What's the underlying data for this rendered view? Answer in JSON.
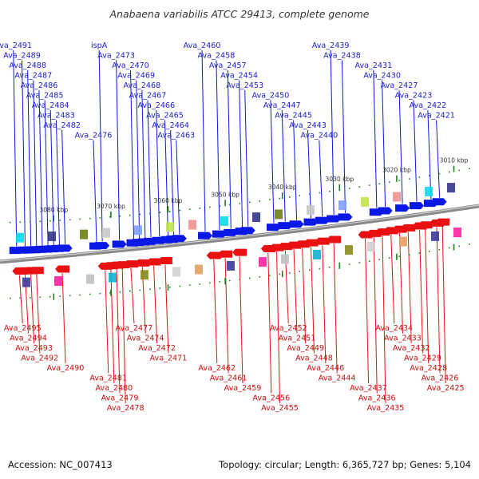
{
  "title": "Anabaena variabilis ATCC 29413, complete genome",
  "footer": {
    "accession": "Accession: NC_007413",
    "summary": "Topology: circular; Length: 6,365,727 bp; Genes: 5,104"
  },
  "colors": {
    "forward": "#0a18e6",
    "reverse": "#e81010",
    "forward_label": "#2020cc",
    "reverse_label": "#cc1010",
    "backbone": "#8a8a8a",
    "tick": "#208020"
  },
  "chart_data": {
    "type": "genome-map",
    "topology": "circular",
    "length_bp": 6365727,
    "gene_count": 5104,
    "visible_range_kbp": [
      3007,
      3088
    ],
    "scale_ticks": [
      {
        "kbp": 3010,
        "label": "3010 kbp"
      },
      {
        "kbp": 3020,
        "label": "3020 kbp"
      },
      {
        "kbp": 3030,
        "label": "3030 kbp"
      },
      {
        "kbp": 3040,
        "label": "3040 kbp"
      },
      {
        "kbp": 3050,
        "label": "3050 kbp"
      },
      {
        "kbp": 3060,
        "label": "3060 kbp"
      },
      {
        "kbp": 3070,
        "label": "3070 kbp"
      },
      {
        "kbp": 3080,
        "label": "3080 kbp"
      }
    ],
    "forward_genes": [
      {
        "label": "Ava_2421",
        "kbp": 3012.5
      },
      {
        "label": "Ava_2422",
        "kbp": 3014.0
      },
      {
        "label": "Ava_2423",
        "kbp": 3016.5
      },
      {
        "label": "Ava_2427",
        "kbp": 3019.0
      },
      {
        "label": "Ava_2430",
        "kbp": 3022.0
      },
      {
        "label": "Ava_2431",
        "kbp": 3023.5
      },
      {
        "label": "Ava_2438",
        "kbp": 3029.0
      },
      {
        "label": "Ava_2439",
        "kbp": 3031.0
      },
      {
        "label": "Ava_2440",
        "kbp": 3033.0
      },
      {
        "label": "Ava_2443",
        "kbp": 3035.0
      },
      {
        "label": "Ava_2445",
        "kbp": 3037.5
      },
      {
        "label": "Ava_2447",
        "kbp": 3039.5
      },
      {
        "label": "Ava_2450",
        "kbp": 3041.5
      },
      {
        "label": "Ava_2453",
        "kbp": 3046.0
      },
      {
        "label": "Ava_2454",
        "kbp": 3047.0
      },
      {
        "label": "Ava_2457",
        "kbp": 3049.0
      },
      {
        "label": "Ava_2458",
        "kbp": 3051.0
      },
      {
        "label": "Ava_2460",
        "kbp": 3053.5
      },
      {
        "label": "Ava_2463",
        "kbp": 3058.0
      },
      {
        "label": "Ava_2464",
        "kbp": 3059.0
      },
      {
        "label": "Ava_2465",
        "kbp": 3060.0
      },
      {
        "label": "Ava_2466",
        "kbp": 3061.5
      },
      {
        "label": "Ava_2467",
        "kbp": 3063.0
      },
      {
        "label": "Ava_2468",
        "kbp": 3064.0
      },
      {
        "label": "Ava_2469",
        "kbp": 3065.0
      },
      {
        "label": "Ava_2470",
        "kbp": 3066.0
      },
      {
        "label": "Ava_2473",
        "kbp": 3068.5
      },
      {
        "label": "Ava_2476",
        "kbp": 3072.5
      },
      {
        "label": "ispA",
        "kbp": 3071.5
      },
      {
        "label": "Ava_2482",
        "kbp": 3078.0
      },
      {
        "label": "Ava_2483",
        "kbp": 3079.0
      },
      {
        "label": "Ava_2484",
        "kbp": 3080.0
      },
      {
        "label": "Ava_2485",
        "kbp": 3081.0
      },
      {
        "label": "Ava_2486",
        "kbp": 3082.0
      },
      {
        "label": "Ava_2487",
        "kbp": 3083.0
      },
      {
        "label": "Ava_2488",
        "kbp": 3084.0
      },
      {
        "label": "Ava_2489",
        "kbp": 3085.0
      },
      {
        "label": "Ava_2491",
        "kbp": 3086.5
      }
    ],
    "reverse_genes": [
      {
        "label": "Ava_2425",
        "kbp": 3012.0
      },
      {
        "label": "Ava_2426",
        "kbp": 3013.0
      },
      {
        "label": "Ava_2428",
        "kbp": 3015.0
      },
      {
        "label": "Ava_2429",
        "kbp": 3016.0
      },
      {
        "label": "Ava_2432",
        "kbp": 3018.0
      },
      {
        "label": "Ava_2433",
        "kbp": 3019.5
      },
      {
        "label": "Ava_2434",
        "kbp": 3021.0
      },
      {
        "label": "Ava_2435",
        "kbp": 3022.5
      },
      {
        "label": "Ava_2436",
        "kbp": 3024.0
      },
      {
        "label": "Ava_2437",
        "kbp": 3025.5
      },
      {
        "label": "Ava_2444",
        "kbp": 3031.0
      },
      {
        "label": "Ava_2446",
        "kbp": 3033.0
      },
      {
        "label": "Ava_2448",
        "kbp": 3035.0
      },
      {
        "label": "Ava_2449",
        "kbp": 3036.5
      },
      {
        "label": "Ava_2451",
        "kbp": 3038.0
      },
      {
        "label": "Ava_2452",
        "kbp": 3039.5
      },
      {
        "label": "Ava_2455",
        "kbp": 3041.0
      },
      {
        "label": "Ava_2456",
        "kbp": 3042.5
      },
      {
        "label": "Ava_2459",
        "kbp": 3047.5
      },
      {
        "label": "Ava_2461",
        "kbp": 3050.0
      },
      {
        "label": "Ava_2462",
        "kbp": 3052.0
      },
      {
        "label": "Ava_2471",
        "kbp": 3060.5
      },
      {
        "label": "Ava_2472",
        "kbp": 3062.5
      },
      {
        "label": "Ava_2474",
        "kbp": 3064.5
      },
      {
        "label": "Ava_2477",
        "kbp": 3066.5
      },
      {
        "label": "Ava_2478",
        "kbp": 3068.0
      },
      {
        "label": "Ava_2479",
        "kbp": 3069.0
      },
      {
        "label": "Ava_2480",
        "kbp": 3070.0
      },
      {
        "label": "Ava_2481",
        "kbp": 3071.0
      },
      {
        "label": "Ava_2490",
        "kbp": 3078.5
      },
      {
        "label": "Ava_2492",
        "kbp": 3083.0
      },
      {
        "label": "Ava_2493",
        "kbp": 3084.0
      },
      {
        "label": "Ava_2494",
        "kbp": 3085.0
      },
      {
        "label": "Ava_2495",
        "kbp": 3086.0
      }
    ]
  }
}
